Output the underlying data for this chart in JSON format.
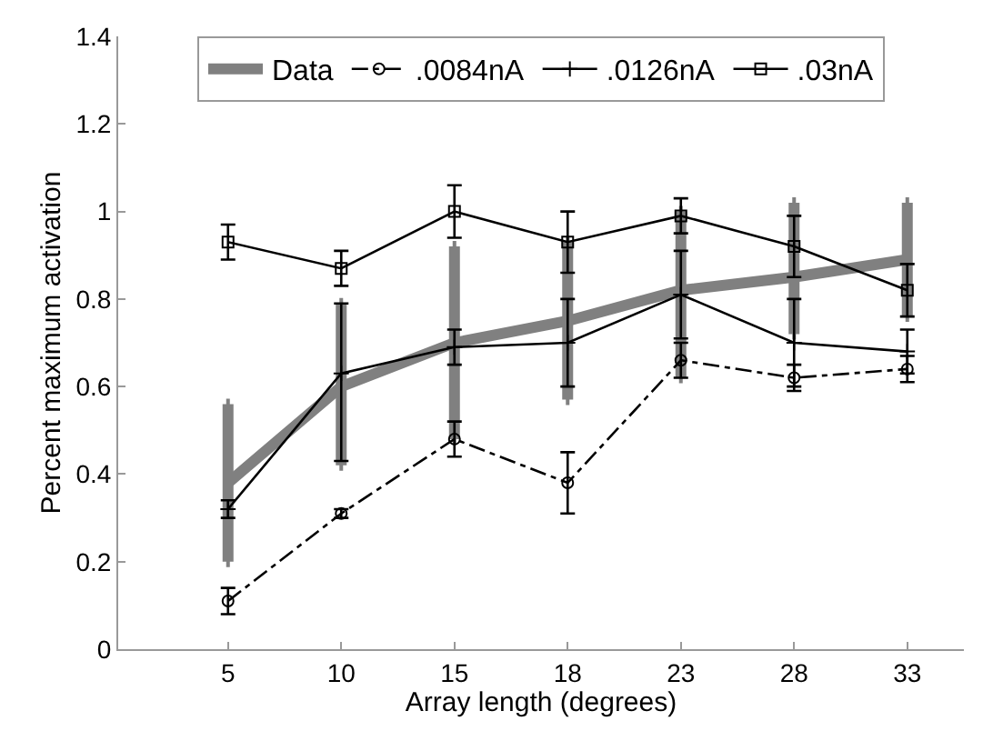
{
  "chart_data": {
    "type": "line",
    "xlabel": "Array length (degrees)",
    "ylabel": "Percent maximum activation",
    "categories": [
      "5",
      "10",
      "15",
      "18",
      "23",
      "28",
      "33"
    ],
    "ylim": [
      0,
      1.4
    ],
    "yticks": [
      0,
      0.2,
      0.4,
      0.6,
      0.8,
      1,
      1.2,
      1.4
    ],
    "legend": "top",
    "series": [
      {
        "name": "Data",
        "color": "#808080",
        "marker": "none",
        "line_style": "solid",
        "values": [
          0.38,
          0.6,
          0.7,
          0.75,
          0.82,
          0.85,
          0.89
        ],
        "errors": [
          [
            0.2,
            0.56
          ],
          [
            0.42,
            0.79
          ],
          [
            0.48,
            0.92
          ],
          [
            0.57,
            0.93
          ],
          [
            0.62,
            1.0
          ],
          [
            0.72,
            1.02
          ],
          [
            0.76,
            1.02
          ]
        ]
      },
      {
        "name": ".0084nA",
        "color": "#000000",
        "marker": "circle",
        "line_style": "dashdot",
        "values": [
          0.11,
          0.31,
          0.48,
          0.38,
          0.66,
          0.62,
          0.64
        ],
        "errors": [
          0.03,
          0.01,
          0.04,
          0.07,
          0.04,
          0.03,
          0.03
        ]
      },
      {
        "name": ".0126nA",
        "color": "#000000",
        "marker": "cross",
        "line_style": "solid",
        "values": [
          0.32,
          0.63,
          0.69,
          0.7,
          0.81,
          0.7,
          0.68
        ],
        "errors": [
          0.02,
          [
            0.43,
            0.79
          ],
          0.04,
          0.1,
          0.1,
          0.1,
          0.05
        ]
      },
      {
        "name": ".03nA",
        "color": "#000000",
        "marker": "square",
        "line_style": "solid",
        "values": [
          0.93,
          0.87,
          1.0,
          0.93,
          0.99,
          0.92,
          0.82
        ],
        "errors": [
          0.04,
          0.04,
          0.06,
          0.07,
          0.04,
          0.07,
          0.06
        ]
      }
    ]
  }
}
